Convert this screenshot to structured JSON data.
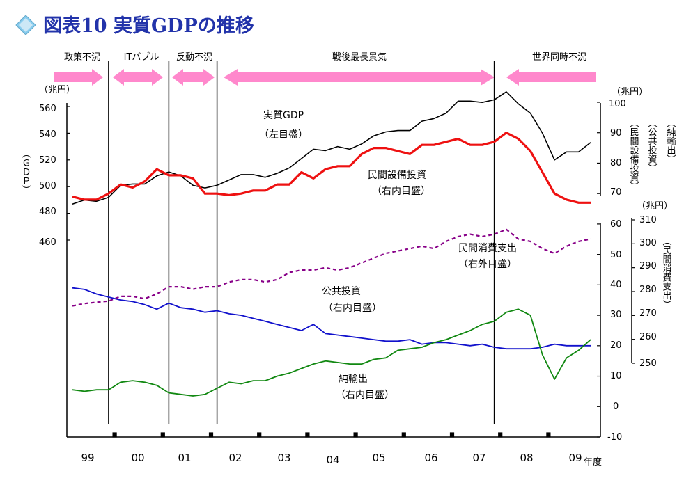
{
  "title": "図表10 実質GDPの推移",
  "colors": {
    "gdp": "#000000",
    "capex": "#ee1111",
    "consumption": "#880088",
    "public_investment": "#1111cc",
    "net_exports": "#118811",
    "arrow": "#ff88cc",
    "title": "#2233aa",
    "diamond": "#88ccee"
  },
  "periods": [
    {
      "label": "政策不況",
      "arrow": "right"
    },
    {
      "label": "ITバブル",
      "arrow": "both"
    },
    {
      "label": "反動不況",
      "arrow": "both"
    },
    {
      "label": "戦後最長景気",
      "arrow": "both"
    },
    {
      "label": "世界同時不況",
      "arrow": "left"
    }
  ],
  "axes": {
    "left": {
      "unit": "（兆円）",
      "label": "（ＧＤＰ）",
      "ticks": [
        "560",
        "540",
        "520",
        "500",
        "480",
        "460"
      ]
    },
    "right_inner_upper": {
      "unit": "（兆円）",
      "ticks": [
        "100",
        "90",
        "80",
        "70"
      ]
    },
    "right_inner_lower": {
      "ticks": [
        "60",
        "50",
        "40",
        "30",
        "20",
        "10",
        "0",
        "-10"
      ]
    },
    "right_outer": {
      "unit": "（兆円）",
      "ticks": [
        "310",
        "300",
        "290",
        "280",
        "270",
        "260",
        "250"
      ],
      "label": "（民間消費支出）"
    },
    "right_labels": [
      "（民間設備投資）",
      "（公共投資）",
      "（純輸出）"
    ],
    "x_ticks": [
      "99",
      "00",
      "01",
      "02",
      "03",
      "04",
      "05",
      "06",
      "07",
      "08",
      "09"
    ],
    "x_unit": "年度"
  },
  "annotations": {
    "gdp": [
      "実質GDP",
      "（左目盛）"
    ],
    "capex": [
      "民間設備投資",
      "（右内目盛）"
    ],
    "consumption": [
      "民間消費支出",
      "（右外目盛）"
    ],
    "public_investment": [
      "公共投資",
      "（右内目盛）"
    ],
    "net_exports": [
      "純輸出",
      "（右内目盛）"
    ]
  },
  "chart_data": {
    "type": "line",
    "x_unit": "年度",
    "x": [
      "99Q1",
      "99Q2",
      "99Q3",
      "99Q4",
      "00Q1",
      "00Q2",
      "00Q3",
      "00Q4",
      "01Q1",
      "01Q2",
      "01Q3",
      "01Q4",
      "02Q1",
      "02Q2",
      "02Q3",
      "02Q4",
      "03Q1",
      "03Q2",
      "03Q3",
      "03Q4",
      "04Q1",
      "04Q2",
      "04Q3",
      "04Q4",
      "05Q1",
      "05Q2",
      "05Q3",
      "05Q4",
      "06Q1",
      "06Q2",
      "06Q3",
      "06Q4",
      "07Q1",
      "07Q2",
      "07Q3",
      "07Q4",
      "08Q1",
      "08Q2",
      "08Q3",
      "08Q4",
      "09Q1",
      "09Q2",
      "09Q3",
      "09Q4"
    ],
    "series": [
      {
        "name": "実質GDP",
        "axis": "left",
        "values": [
          487,
          490,
          489,
          492,
          501,
          502,
          502,
          508,
          511,
          508,
          501,
          499,
          501,
          505,
          509,
          509,
          507,
          510,
          514,
          521,
          528,
          527,
          530,
          528,
          532,
          538,
          541,
          542,
          542,
          549,
          551,
          555,
          564,
          564,
          563,
          565,
          571,
          562,
          555,
          540,
          520,
          526,
          526,
          533
        ]
      },
      {
        "name": "民間設備投資",
        "axis": "right_inner",
        "values": [
          69,
          68,
          68,
          70,
          73,
          72,
          74,
          78,
          76,
          76,
          75,
          70,
          70,
          69.5,
          70,
          71,
          71,
          73,
          73,
          77,
          75,
          78,
          79,
          79,
          83,
          85,
          85,
          84,
          83,
          86,
          86,
          87,
          88,
          86,
          86,
          87,
          90,
          88,
          84,
          77,
          70,
          68,
          67,
          67
        ]
      },
      {
        "name": "民間消費支出",
        "axis": "right_outer",
        "values": [
          274,
          275,
          275.5,
          276,
          278,
          278,
          277,
          279,
          282,
          282,
          281,
          282,
          282,
          284,
          285,
          285,
          284,
          285,
          288,
          289,
          289,
          290,
          289,
          290,
          292,
          294,
          296,
          297,
          298,
          299,
          298,
          301,
          303,
          304,
          303,
          304,
          306,
          302,
          301,
          298,
          296,
          299,
          301,
          302
        ]
      },
      {
        "name": "公共投資",
        "axis": "right_inner",
        "values": [
          39,
          38.5,
          37,
          36,
          35,
          34.5,
          33.5,
          32,
          34,
          32.5,
          32,
          31,
          31.5,
          30.5,
          30,
          29,
          28,
          27,
          26,
          25,
          27,
          24,
          23.5,
          23,
          22.5,
          22,
          21.5,
          21.5,
          22,
          20.5,
          21,
          21,
          20.5,
          20,
          20.5,
          19.5,
          19,
          19,
          19,
          19.5,
          20.5,
          20,
          20,
          20
        ]
      },
      {
        "name": "純輸出",
        "axis": "right_inner",
        "values": [
          5.5,
          5,
          5.5,
          5.5,
          8,
          8.5,
          8,
          7,
          4.5,
          4,
          3.5,
          4,
          6,
          8,
          7.5,
          8.5,
          8.5,
          10,
          11,
          12.5,
          14,
          15,
          14.5,
          14,
          14,
          15.5,
          16,
          18.5,
          19,
          19.5,
          21,
          22,
          23.5,
          25,
          27,
          28,
          31,
          32,
          30,
          17,
          9,
          16,
          18.5,
          22
        ]
      }
    ],
    "axis_ranges": {
      "left": [
        460,
        560
      ],
      "right_inner": [
        -10,
        100
      ],
      "right_outer": [
        250,
        310
      ]
    },
    "recession_boundaries": [
      "99Q4",
      "01Q1",
      "02Q1",
      "07Q4"
    ],
    "grid": false,
    "legend": "none"
  }
}
